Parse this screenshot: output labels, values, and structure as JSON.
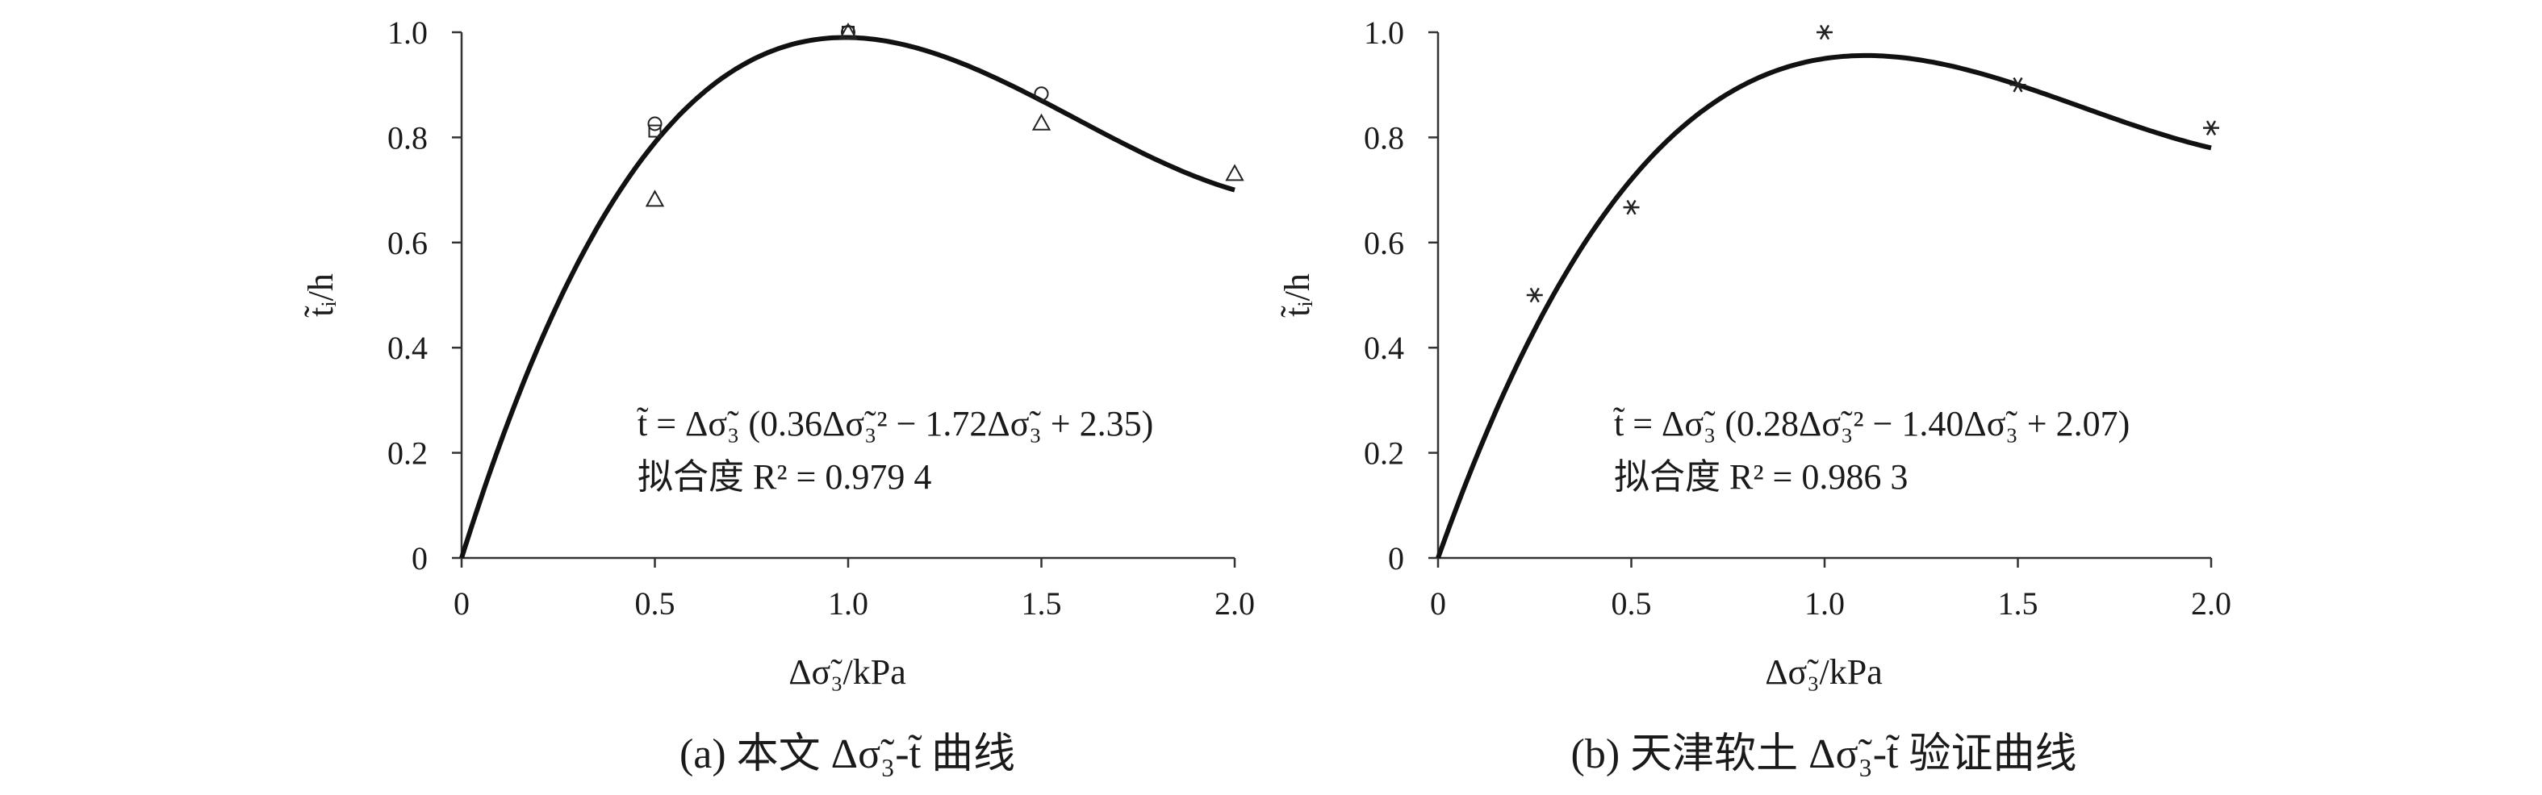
{
  "chart_data": [
    {
      "type": "scatter",
      "panel": "a",
      "ylabel": "t̃ᵢ/h",
      "xlabel": "Δσ̃₃/kPa",
      "xlim": [
        0,
        2.0
      ],
      "ylim": [
        0,
        1.0
      ],
      "x_ticks": [
        "0",
        "0.5",
        "1.0",
        "1.5",
        "2.0"
      ],
      "y_ticks": [
        "0",
        "0.2",
        "0.4",
        "0.6",
        "0.8",
        "1.0"
      ],
      "grid": false,
      "equation": "t̃ = Δσ̃₃ (0.36Δσ̃₃² − 1.72Δσ̃₃ + 2.35)",
      "r2_text": "拟合度 R² = 0.979 4",
      "fit": {
        "a": 0.36,
        "b": -1.72,
        "c": 2.35
      },
      "series": [
        {
          "marker": "circle",
          "points": [
            [
              0.5,
              0.826
            ],
            [
              1.0,
              1.0
            ],
            [
              1.5,
              0.883
            ]
          ]
        },
        {
          "marker": "square",
          "points": [
            [
              0.5,
              0.812
            ],
            [
              1.0,
              1.0
            ]
          ]
        },
        {
          "marker": "triangle",
          "points": [
            [
              0.5,
              0.682
            ],
            [
              1.0,
              1.0
            ],
            [
              1.5,
              0.827
            ],
            [
              2.0,
              0.731
            ]
          ]
        }
      ],
      "caption": "(a) 本文 Δσ̃₃-t̃ 曲线"
    },
    {
      "type": "scatter",
      "panel": "b",
      "ylabel": "t̃ᵢ/h",
      "xlabel": "Δσ̃₃/kPa",
      "xlim": [
        0,
        2.0
      ],
      "ylim": [
        0,
        1.0
      ],
      "x_ticks": [
        "0",
        "0.5",
        "1.0",
        "1.5",
        "2.0"
      ],
      "y_ticks": [
        "0",
        "0.2",
        "0.4",
        "0.6",
        "0.8",
        "1.0"
      ],
      "grid": false,
      "equation": "t̃ = Δσ̃₃ (0.28Δσ̃₃² − 1.40Δσ̃₃ + 2.07)",
      "r2_text": "拟合度 R² = 0.986 3",
      "fit": {
        "a": 0.28,
        "b": -1.4,
        "c": 2.07
      },
      "series": [
        {
          "marker": "asterisk",
          "points": [
            [
              0.25,
              0.5
            ],
            [
              0.5,
              0.667
            ],
            [
              1.0,
              1.0
            ],
            [
              1.5,
              0.9
            ],
            [
              2.0,
              0.818
            ]
          ]
        }
      ],
      "caption": "(b) 天津软土 Δσ̃₃-t̃ 验证曲线"
    }
  ]
}
